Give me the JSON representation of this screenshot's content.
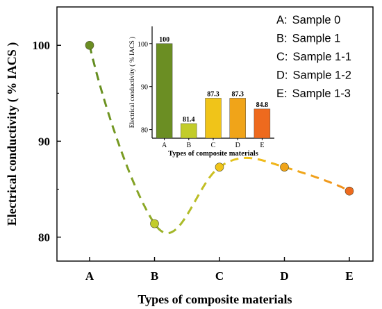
{
  "chart_data": [
    {
      "type": "line",
      "categories": [
        "A",
        "B",
        "C",
        "D",
        "E"
      ],
      "values": [
        100,
        81.4,
        87.3,
        87.3,
        84.8
      ],
      "xlabel": "Types of composite materials",
      "ylabel": "Electrical conductivity ( % IACS )",
      "ylim": [
        77.5,
        104
      ],
      "yticks": [
        80,
        90,
        100
      ],
      "grid": false,
      "line_style": "dashed smooth curve",
      "legend": {
        "placement": "top-right",
        "entries": [
          {
            "key": "A",
            "sep": ":",
            "label": "Sample 0"
          },
          {
            "key": "B",
            "sep": ":",
            "label": "Sample 1"
          },
          {
            "key": "C",
            "sep": ":",
            "label": "Sample 1-1"
          },
          {
            "key": "D",
            "sep": ":",
            "label": "Sample 1-2"
          },
          {
            "key": "E",
            "sep": ":",
            "label": "Sample 1-3"
          }
        ]
      }
    },
    {
      "type": "bar",
      "placement": "inset top-center",
      "categories": [
        "A",
        "B",
        "C",
        "D",
        "E"
      ],
      "values": [
        100,
        81.4,
        87.3,
        87.3,
        84.8
      ],
      "data_labels": [
        "100",
        "81.4",
        "87.3",
        "87.3",
        "84.8"
      ],
      "xlabel": "Types of composite materials",
      "ylabel": "Electrical conductivity ( % IACS )",
      "ylim": [
        78,
        104
      ],
      "yticks": [
        80,
        90,
        100
      ],
      "grid": false
    }
  ],
  "colors": {
    "A": "#6b8e23",
    "B": "#c2cc2a",
    "C": "#f0c419",
    "D": "#f0a419",
    "E": "#ee6a1e",
    "line": "#72961e",
    "axis": "#000000"
  }
}
